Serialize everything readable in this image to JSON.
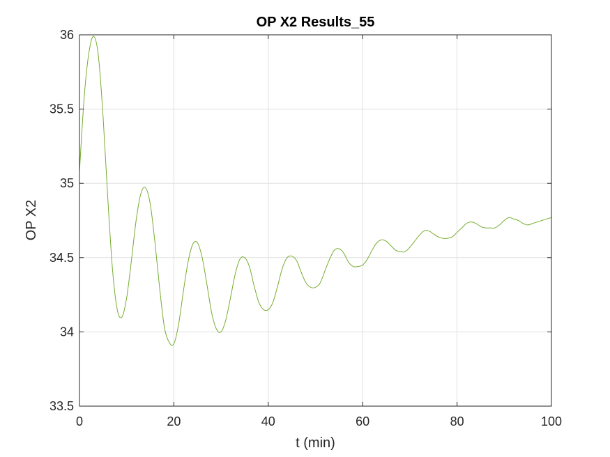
{
  "chart_data": {
    "type": "line",
    "title": "OP X2 Results_55",
    "xlabel": "t (min)",
    "ylabel": "OP X2",
    "xlim": [
      0,
      100
    ],
    "ylim": [
      33.5,
      36
    ],
    "xticks": [
      0,
      20,
      40,
      60,
      80,
      100
    ],
    "xtick_labels": [
      "0",
      "20",
      "40",
      "60",
      "80",
      "100"
    ],
    "yticks": [
      33.5,
      34,
      34.5,
      35,
      35.5,
      36
    ],
    "ytick_labels": [
      "33.5",
      "34",
      "34.5",
      "35",
      "35.5",
      "36"
    ],
    "grid": true,
    "series": [
      {
        "color": "#77ac30",
        "x": [
          0,
          1,
          2,
          3,
          4,
          5,
          6,
          7,
          8,
          9,
          10,
          11,
          12,
          13,
          14,
          15,
          16,
          17,
          18,
          19,
          20,
          21,
          22,
          23,
          24,
          25,
          26,
          27,
          28,
          29,
          30,
          31,
          32,
          33,
          34,
          35,
          36,
          37,
          38,
          39,
          40,
          41,
          42,
          43,
          44,
          45,
          46,
          47,
          48,
          49,
          50,
          51,
          52,
          53,
          54,
          55,
          56,
          57,
          58,
          59,
          60,
          61,
          62,
          63,
          64,
          65,
          66,
          67,
          68,
          69,
          70,
          71,
          72,
          73,
          74,
          75,
          76,
          77,
          78,
          79,
          80,
          81,
          82,
          83,
          84,
          85,
          86,
          87,
          88,
          89,
          90,
          91,
          92,
          93,
          94,
          95,
          96,
          97,
          98,
          99,
          100
        ],
        "y": [
          35.08,
          35.58,
          35.88,
          35.99,
          35.86,
          35.45,
          34.9,
          34.42,
          34.15,
          34.1,
          34.23,
          34.48,
          34.75,
          34.93,
          34.97,
          34.86,
          34.6,
          34.29,
          34.03,
          33.93,
          33.92,
          34.05,
          34.27,
          34.47,
          34.59,
          34.6,
          34.5,
          34.32,
          34.13,
          34.02,
          34.0,
          34.08,
          34.23,
          34.39,
          34.49,
          34.5,
          34.44,
          34.31,
          34.2,
          34.15,
          34.15,
          34.2,
          34.31,
          34.43,
          34.5,
          34.51,
          34.48,
          34.4,
          34.33,
          34.3,
          34.3,
          34.33,
          34.41,
          34.49,
          34.55,
          34.56,
          34.53,
          34.47,
          34.44,
          34.44,
          34.45,
          34.49,
          34.55,
          34.6,
          34.62,
          34.61,
          34.58,
          34.55,
          34.54,
          34.54,
          34.57,
          34.61,
          34.65,
          34.68,
          34.68,
          34.66,
          34.64,
          34.63,
          34.63,
          34.64,
          34.67,
          34.7,
          34.73,
          34.74,
          34.73,
          34.71,
          34.7,
          34.7,
          34.7,
          34.72,
          34.75,
          34.77,
          34.76,
          34.75,
          34.73,
          34.72,
          34.73,
          34.74,
          34.75,
          34.76,
          34.77
        ]
      }
    ]
  }
}
